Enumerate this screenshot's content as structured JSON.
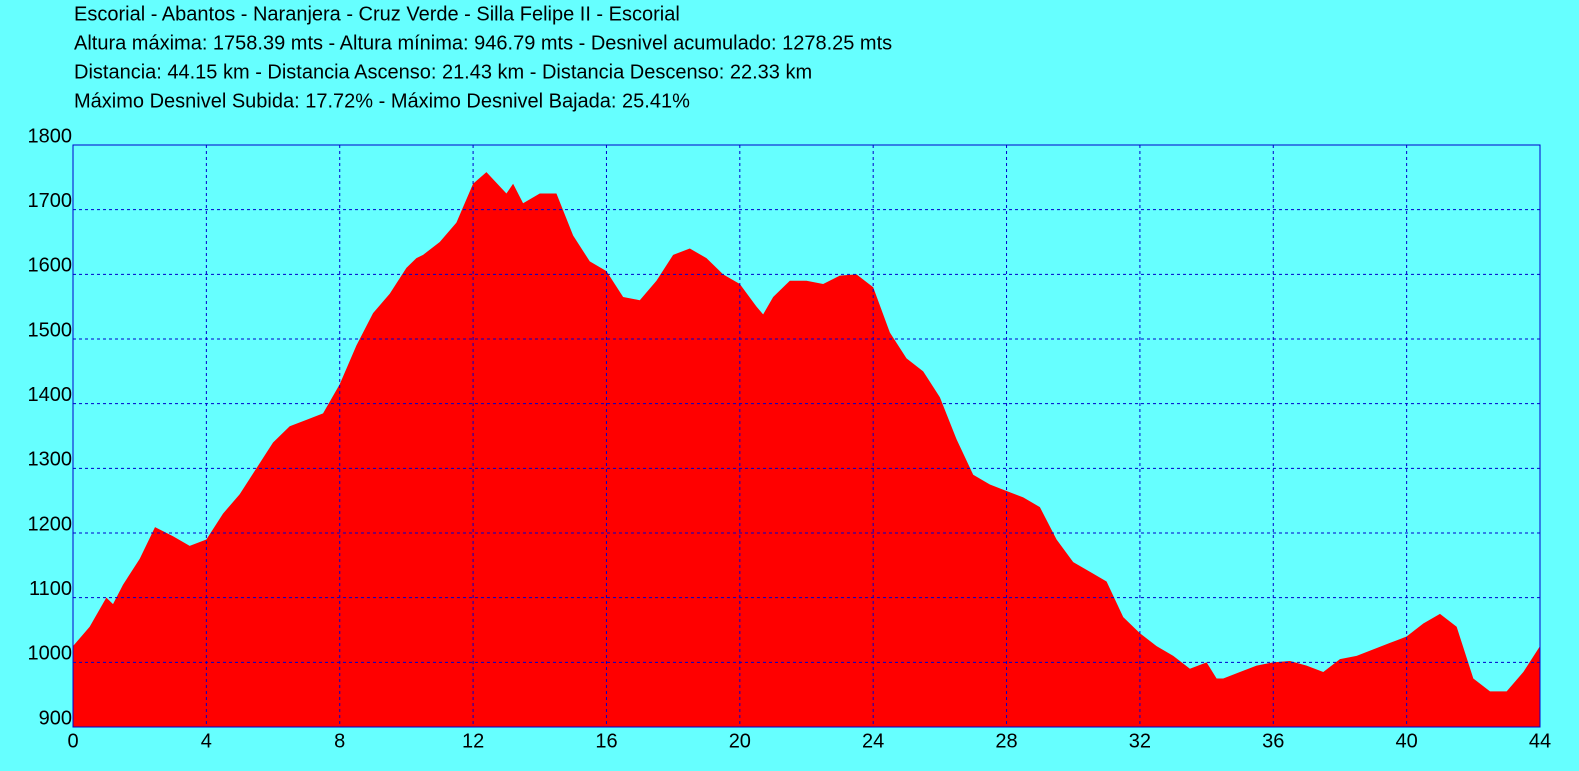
{
  "chart_data": {
    "type": "area",
    "title": "Escorial - Abantos - Naranjera - Cruz Verde - Silla Felipe II - Escorial",
    "subtitles": [
      "Altura máxima: 1758.39 mts - Altura mínima: 946.79 mts - Desnivel acumulado: 1278.25 mts",
      "Distancia: 44.15 km - Distancia Ascenso: 21.43 km - Distancia Descenso: 22.33 km",
      "Máximo Desnivel Subida: 17.72% - Máximo Desnivel Bajada: 25.41%"
    ],
    "x": [
      0,
      0.5,
      1,
      1.2,
      1.5,
      2,
      2.46,
      3,
      3.5,
      4,
      4.5,
      5,
      5.5,
      6,
      6.5,
      7,
      7.5,
      8,
      8.5,
      9,
      9.5,
      10,
      10.3,
      10.5,
      11,
      11.5,
      12,
      12.4,
      13,
      13.2,
      13.5,
      14,
      14.5,
      15,
      15.5,
      16,
      16.5,
      17,
      17.5,
      18,
      18.5,
      19,
      19.5,
      20,
      20.5,
      20.7,
      21,
      21.5,
      22,
      22.5,
      23,
      23.5,
      24,
      24.5,
      25,
      25.5,
      26,
      26.5,
      27,
      27.5,
      28,
      28.5,
      29,
      29.5,
      30,
      30.5,
      31,
      31.5,
      32,
      32.5,
      33,
      33.5,
      34,
      34.3,
      34.5,
      35,
      35.5,
      36,
      36.5,
      37,
      37.5,
      38,
      38.5,
      39,
      39.5,
      40,
      40.5,
      41,
      41.5,
      42,
      42.5,
      43,
      43.5,
      44
    ],
    "values": [
      1025,
      1055,
      1100,
      1090,
      1120,
      1160,
      1209,
      1195,
      1180,
      1190,
      1230,
      1260,
      1300,
      1340,
      1365,
      1375,
      1385,
      1430,
      1490,
      1540,
      1570,
      1610,
      1625,
      1630,
      1650,
      1680,
      1740,
      1758,
      1725,
      1740,
      1710,
      1725,
      1725,
      1660,
      1620,
      1605,
      1565,
      1560,
      1590,
      1630,
      1640,
      1625,
      1600,
      1585,
      1550,
      1538,
      1565,
      1590,
      1590,
      1585,
      1598,
      1600,
      1580,
      1510,
      1470,
      1450,
      1410,
      1345,
      1290,
      1275,
      1265,
      1255,
      1240,
      1190,
      1155,
      1140,
      1125,
      1070,
      1045,
      1025,
      1010,
      990,
      1000,
      975,
      975,
      985,
      995,
      1000,
      1002,
      995,
      985,
      1005,
      1010,
      1020,
      1030,
      1040,
      1060,
      1075,
      1055,
      975,
      955,
      955,
      985,
      1025
    ],
    "color": "#ff0000",
    "xlim": [
      0,
      44
    ],
    "xticks": [
      0,
      4,
      8,
      12,
      16,
      20,
      24,
      28,
      32,
      36,
      40,
      44
    ],
    "ylim": [
      900,
      1800
    ],
    "yticks": [
      900,
      1000,
      1100,
      1200,
      1300,
      1400,
      1500,
      1600,
      1700,
      1800
    ],
    "grid": true
  }
}
